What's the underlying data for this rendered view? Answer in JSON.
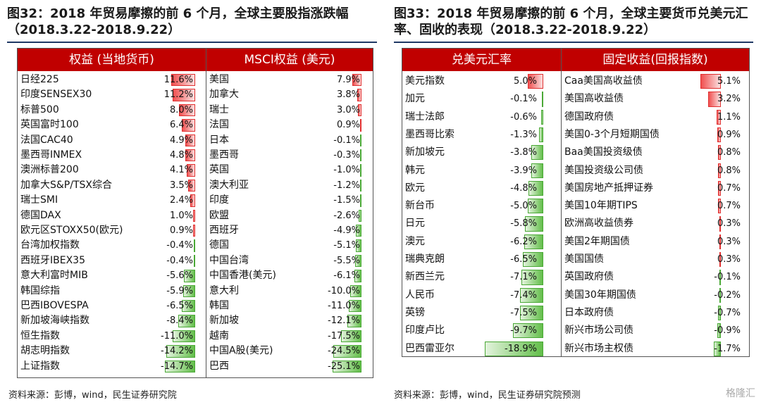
{
  "left_title": "图32：2018 年贸易摩擦的前 6 个月，全球主要股指涨跌幅（2018.3.22-2018.9.22）",
  "right_title": "图33：2018 年贸易摩擦的前 6 个月，全球主要货币兑美元汇率、固收的表现（2018.3.22-2018.9.22）",
  "left_source": "资料来源：彭博，wind，民生证券研究院",
  "right_source": "资料来源：彭博，wind，民生证券研究院预测",
  "watermark": "格隆汇",
  "chart_data": [
    {
      "type": "table",
      "header": "权益 (当地货币)",
      "categories": [
        "日经225",
        "印度SENSEX30",
        "标普500",
        "英国富时100",
        "法国CAC40",
        "墨西哥INMEX",
        "澳洲标普200",
        "加拿大S&P/TSX综合",
        "瑞士SMI",
        "德国DAX",
        "欧元区STOXX50(欧元)",
        "台湾加权指数",
        "西班牙IBEX35",
        "意大利富时MIB",
        "韩国综指",
        "巴西IBOVESPA",
        "新加坡海峡指数",
        "恒生指数",
        "胡志明指数",
        "上证指数"
      ],
      "values": [
        11.6,
        11.2,
        8.0,
        6.4,
        4.9,
        4.8,
        4.1,
        3.5,
        2.4,
        1.0,
        0.9,
        -0.4,
        -0.4,
        -5.6,
        -5.9,
        -6.5,
        -8.4,
        -11.0,
        -14.2,
        -14.7
      ],
      "labels": [
        "11.6%",
        "11.2%",
        "8.0%",
        "6.4%",
        "4.9%",
        "4.8%",
        "4.1%",
        "3.5%",
        "2.4%",
        "1.0%",
        "0.9%",
        "-0.4%",
        "-0.4%",
        "-5.6%",
        "-5.9%",
        "-6.5%",
        "-8.4%",
        "-11.0%",
        "-14.2%",
        "-14.7%"
      ]
    },
    {
      "type": "table",
      "header": "MSCI权益 (美元)",
      "categories": [
        "美国",
        "加拿大",
        "瑞士",
        "法国",
        "日本",
        "墨西哥",
        "英国",
        "澳大利亚",
        "印度",
        "欧盟",
        "西班牙",
        "德国",
        "中国台湾",
        "中国香港(美元)",
        "意大利",
        "韩国",
        "新加坡",
        "越南",
        "中国A股(美元)",
        "巴西"
      ],
      "values": [
        7.9,
        3.8,
        3.0,
        0.9,
        -0.1,
        -0.3,
        -1.0,
        -1.2,
        -1.5,
        -2.6,
        -4.9,
        -5.1,
        -5.5,
        -6.1,
        -10.0,
        -11.0,
        -12.1,
        -17.5,
        -24.5,
        -25.1
      ],
      "labels": [
        "7.9%",
        "3.8%",
        "3.0%",
        "0.9%",
        "-0.1%",
        "-0.3%",
        "-1.0%",
        "-1.2%",
        "-1.5%",
        "-2.6%",
        "-4.9%",
        "-5.1%",
        "-5.5%",
        "-6.1%",
        "-10.0%",
        "-11.0%",
        "-12.1%",
        "-17.5%",
        "-24.5%",
        "-25.1%"
      ]
    },
    {
      "type": "table",
      "header": "兑美元汇率",
      "categories": [
        "美元指数",
        "加元",
        "瑞士法郎",
        "墨西哥比索",
        "新加坡元",
        "韩元",
        "欧元",
        "新台币",
        "日元",
        "澳元",
        "瑞典克朗",
        "新西兰元",
        "人民币",
        "英镑",
        "印度卢比",
        "巴西雷亚尔"
      ],
      "values": [
        5.0,
        -0.1,
        -0.6,
        -1.3,
        -3.8,
        -3.9,
        -4.8,
        -5.0,
        -5.8,
        -6.2,
        -6.5,
        -7.1,
        -7.4,
        -7.5,
        -9.7,
        -18.9
      ],
      "labels": [
        "5.0%",
        "-0.1%",
        "-0.6%",
        "-1.3%",
        "-3.8%",
        "-3.9%",
        "-4.8%",
        "-5.0%",
        "-5.8%",
        "-6.2%",
        "-6.5%",
        "-7.1%",
        "-7.4%",
        "-7.5%",
        "-9.7%",
        "-18.9%"
      ]
    },
    {
      "type": "table",
      "header": "固定收益(回报指数)",
      "categories": [
        "Caa美国高收益债",
        "美国高收益债",
        "德国政府债",
        "美国0-3个月短期国债",
        "Baa美国投资级债",
        "美国投资级公司债",
        "美国房地产抵押证券",
        "美国10年期TIPS",
        "欧洲高收益债券",
        "美国2年期国债",
        "美国国债",
        "英国政府债",
        "美国30年期国债",
        "日本政府债",
        "新兴市场公司债",
        "新兴市场主权债"
      ],
      "values": [
        5.1,
        3.2,
        1.1,
        0.9,
        0.8,
        0.8,
        0.7,
        0.7,
        0.3,
        0.3,
        0.3,
        -0.1,
        -0.2,
        -0.7,
        -0.9,
        -1.7
      ],
      "labels": [
        "5.1%",
        "3.2%",
        "1.1%",
        "0.9%",
        "0.8%",
        "0.8%",
        "0.7%",
        "0.7%",
        "0.3%",
        "0.3%",
        "0.3%",
        "-0.1%",
        "-0.2%",
        "-0.7%",
        "-0.9%",
        "-1.7%"
      ]
    }
  ]
}
